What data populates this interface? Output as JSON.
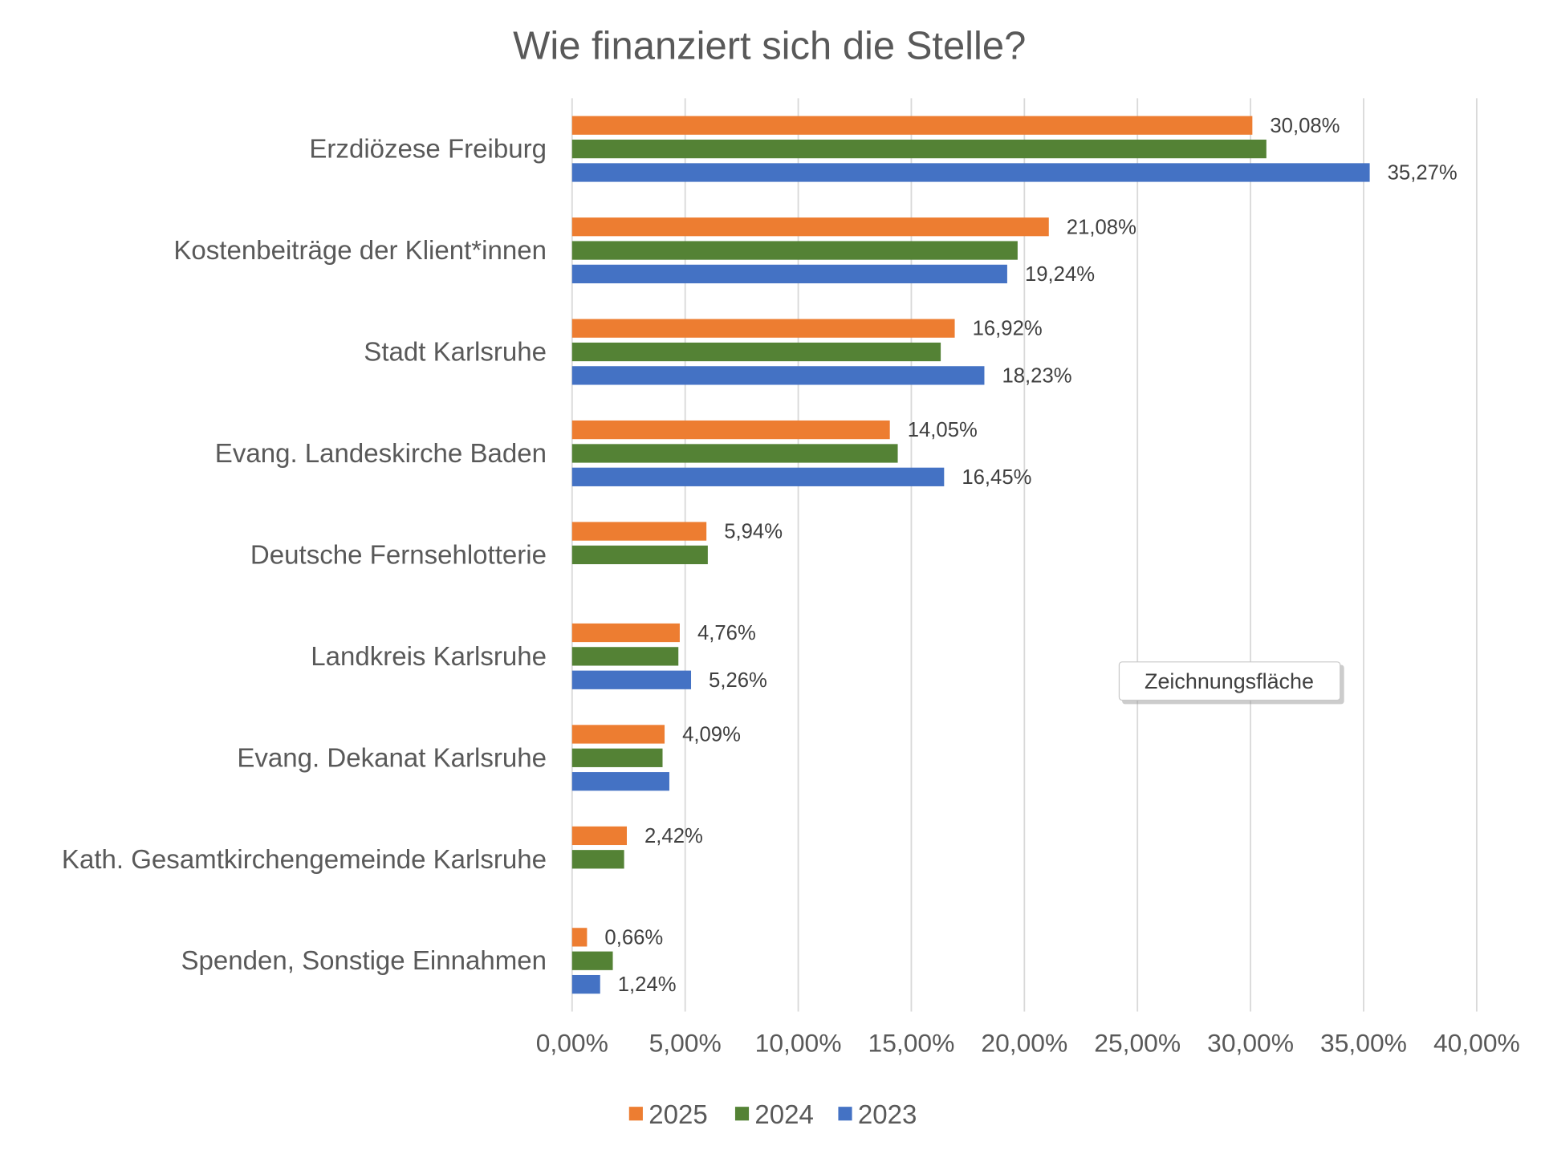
{
  "chart_data": {
    "type": "bar",
    "orientation": "horizontal",
    "title": "Wie finanziert sich die Stelle?",
    "xlabel": "",
    "ylabel": "",
    "xlim": [
      0,
      40
    ],
    "grid": true,
    "legend_position": "bottom",
    "categories": [
      "Erzdiözese Freiburg",
      "Kostenbeiträge der Klient*innen",
      "Stadt Karlsruhe",
      "Evang. Landeskirche Baden",
      "Deutsche Fernsehlotterie",
      "Landkreis Karlsruhe",
      "Evang. Dekanat Karlsruhe",
      "Kath. Gesamtkirchengemeinde Karlsruhe",
      "Spenden, Sonstige Einnahmen"
    ],
    "x_ticks": [
      "0,00%",
      "5,00%",
      "10,00%",
      "15,00%",
      "20,00%",
      "25,00%",
      "30,00%",
      "35,00%",
      "40,00%"
    ],
    "series": [
      {
        "name": "2025",
        "color": "#ED7D31",
        "values": [
          30.08,
          21.08,
          16.92,
          14.05,
          5.94,
          4.76,
          4.09,
          2.42,
          0.66
        ],
        "labels": [
          "30,08%",
          "21,08%",
          "16,92%",
          "14,05%",
          "5,94%",
          "4,76%",
          "4,09%",
          "2,42%",
          "0,66%"
        ]
      },
      {
        "name": "2024",
        "color": "#548235",
        "values": [
          30.7,
          19.7,
          16.3,
          14.4,
          6.0,
          4.7,
          4.0,
          2.3,
          1.8
        ],
        "labels": [
          null,
          null,
          null,
          null,
          null,
          null,
          null,
          null,
          null
        ]
      },
      {
        "name": "2023",
        "color": "#4472C4",
        "values": [
          35.27,
          19.24,
          18.23,
          16.45,
          null,
          5.26,
          4.3,
          null,
          1.24
        ],
        "labels": [
          "35,27%",
          "19,24%",
          "18,23%",
          "16,45%",
          null,
          "5,26%",
          null,
          null,
          "1,24%"
        ]
      }
    ]
  },
  "tooltip": {
    "text": "Zeichnungsfläche"
  }
}
